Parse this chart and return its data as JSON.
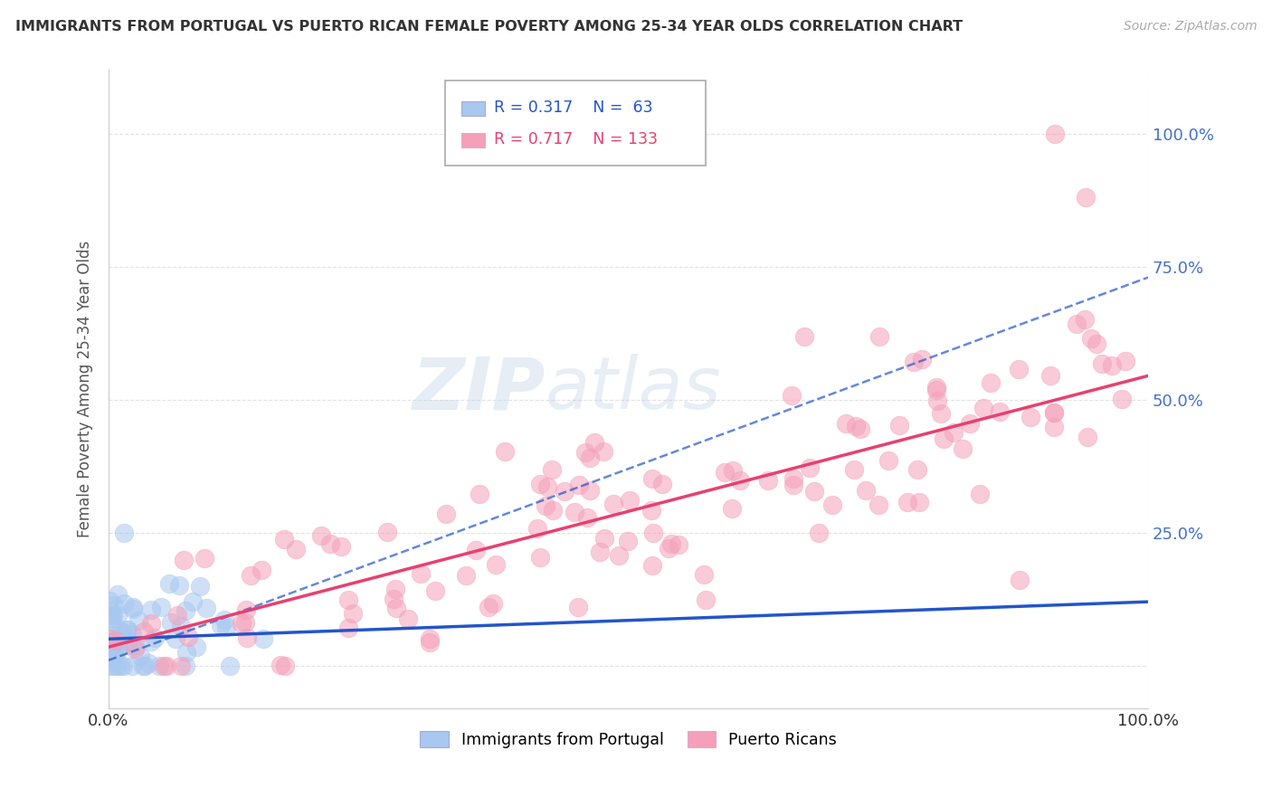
{
  "title": "IMMIGRANTS FROM PORTUGAL VS PUERTO RICAN FEMALE POVERTY AMONG 25-34 YEAR OLDS CORRELATION CHART",
  "source": "Source: ZipAtlas.com",
  "ylabel": "Female Poverty Among 25-34 Year Olds",
  "xlim": [
    0,
    1
  ],
  "ylim": [
    -0.08,
    1.12
  ],
  "yticks": [
    0.0,
    0.25,
    0.5,
    0.75,
    1.0
  ],
  "ytick_labels": [
    "",
    "25.0%",
    "50.0%",
    "75.0%",
    "100.0%"
  ],
  "xticks": [
    0.0,
    1.0
  ],
  "xtick_labels": [
    "0.0%",
    "100.0%"
  ],
  "blue_R": 0.317,
  "blue_N": 63,
  "pink_R": 0.717,
  "pink_N": 133,
  "blue_color": "#a8c8f0",
  "pink_color": "#f5a0b8",
  "blue_line_color": "#2255cc",
  "pink_line_color": "#e84070",
  "blue_label": "Immigrants from Portugal",
  "pink_label": "Puerto Ricans",
  "watermark_zip": "ZIP",
  "watermark_atlas": "atlas",
  "background_color": "#ffffff",
  "grid_color": "#dddddd",
  "title_color": "#333333",
  "source_color": "#aaaaaa",
  "ylabel_color": "#555555",
  "ytick_color": "#4472c4",
  "xtick_color": "#333333"
}
